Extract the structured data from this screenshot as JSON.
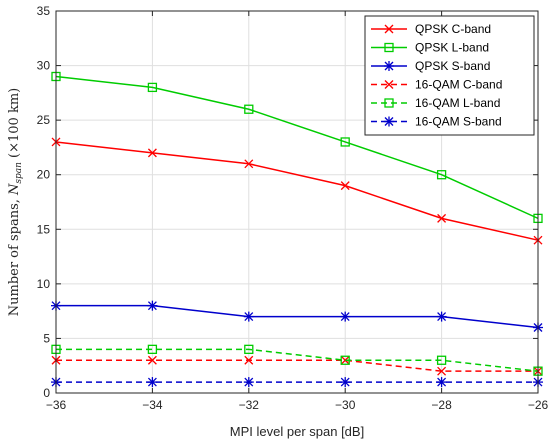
{
  "chart_data": {
    "type": "line",
    "xlabel": "MPI level per span [dB]",
    "ylabel": "Number of spans, Nspan (×100 km)",
    "ylabel_parts": {
      "prefix": "Number of spans, ",
      "var": "N",
      "sub": "span",
      "suffix": " (×100 km)"
    },
    "xlim": [
      -36,
      -26
    ],
    "ylim": [
      0,
      35
    ],
    "xticks": [
      -36,
      -34,
      -32,
      -30,
      -28,
      -26
    ],
    "yticks": [
      0,
      5,
      10,
      15,
      20,
      25,
      30,
      35
    ],
    "x": [
      -36,
      -34,
      -32,
      -30,
      -28,
      -26
    ],
    "grid": true,
    "legend_position": "top-right",
    "series": [
      {
        "name": "QPSK C-band",
        "values": [
          23,
          22,
          21,
          19,
          16,
          14
        ],
        "color": "#ff0000",
        "marker": "x",
        "dash": "solid"
      },
      {
        "name": "QPSK L-band",
        "values": [
          29,
          28,
          26,
          23,
          20,
          16
        ],
        "color": "#00cc00",
        "marker": "square",
        "dash": "solid"
      },
      {
        "name": "QPSK S-band",
        "values": [
          8,
          8,
          7,
          7,
          7,
          6
        ],
        "color": "#0000cc",
        "marker": "asterisk",
        "dash": "solid"
      },
      {
        "name": "16-QAM C-band",
        "values": [
          3,
          3,
          3,
          3,
          2,
          2
        ],
        "color": "#ff0000",
        "marker": "x",
        "dash": "dashed"
      },
      {
        "name": "16-QAM L-band",
        "values": [
          4,
          4,
          4,
          3,
          3,
          2
        ],
        "color": "#00cc00",
        "marker": "square",
        "dash": "dashed"
      },
      {
        "name": "16-QAM S-band",
        "values": [
          1,
          1,
          1,
          1,
          1,
          1
        ],
        "color": "#0000cc",
        "marker": "asterisk",
        "dash": "dashed"
      }
    ]
  }
}
